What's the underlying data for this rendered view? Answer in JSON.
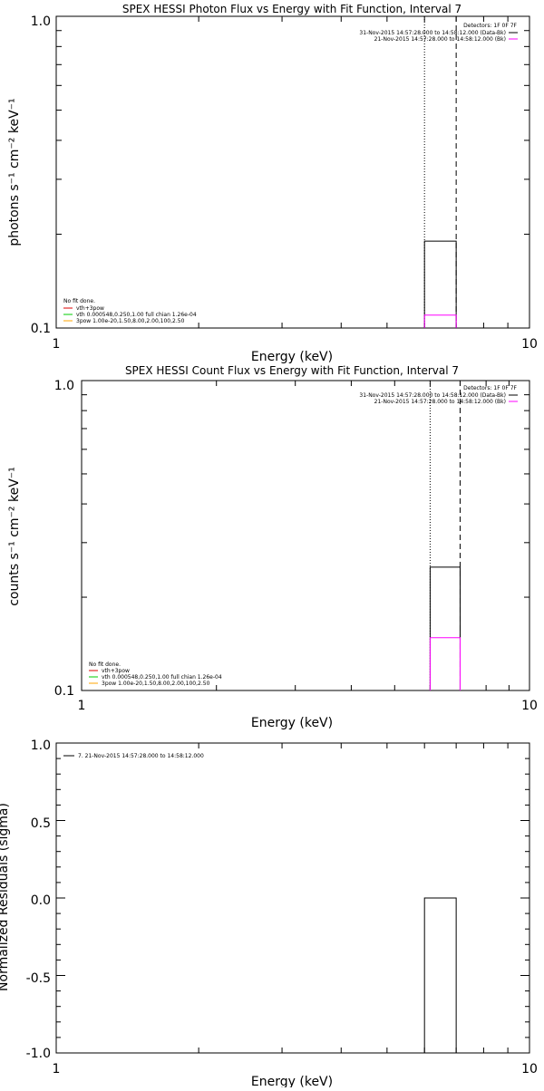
{
  "chart_data": [
    {
      "type": "line",
      "title": "SPEX HESSI Photon Flux vs Energy with Fit Function, Interval 7",
      "xlabel": "Energy (keV)",
      "ylabel": "photons s⁻¹ cm⁻² keV⁻¹",
      "xscale": "log",
      "yscale": "log",
      "xlim": [
        1,
        10
      ],
      "ylim": [
        0.1,
        1.0
      ],
      "x_ticklabels": [
        "1",
        "10"
      ],
      "y_ticklabels": [
        "0.1",
        "1.0"
      ],
      "vlines": [
        {
          "x": 6.0,
          "style": "dotted",
          "color": "#000000"
        },
        {
          "x": 7.0,
          "style": "dashed",
          "color": "#000000"
        }
      ],
      "series": [
        {
          "name": "31-Nov-2015 14:57:28.000 to 14:58:12.000 (Data-Bk)",
          "color": "#000000",
          "step": {
            "x": [
              6.0,
              7.0
            ],
            "y": 0.19
          }
        },
        {
          "name": "21-Nov-2015 14:57:28.000 to 14:58:12.000 (Bk)",
          "color": "#ff00ff",
          "step": {
            "x": [
              6.0,
              7.0
            ],
            "y": 0.11
          }
        }
      ],
      "legend_top_right": {
        "header": "Detectors: 1F 0F 7F",
        "entries": [
          {
            "text": "31-Nov-2015 14:57:28.000 to 14:58:12.000 (Data-Bk)",
            "color": "#000000"
          },
          {
            "text": "21-Nov-2015 14:57:28.000 to 14:58:12.000 (Bk)",
            "color": "#ff00ff"
          }
        ]
      },
      "legend_bottom_left": {
        "header": "No fit done.",
        "entries": [
          {
            "text": "vth+3pow",
            "color": "#dd0000"
          },
          {
            "text": "vth 0.000548,0.250,1.00  full chian 1.26e-04",
            "color": "#00cc00"
          },
          {
            "text": "3pow 1.00e-20,1.50,8.00,2.00,100,2.50",
            "color": "#ffa500"
          }
        ]
      }
    },
    {
      "type": "line",
      "title": "SPEX HESSI Count Flux vs Energy with Fit Function, Interval 7",
      "xlabel": "Energy (keV)",
      "ylabel": "counts s⁻¹ cm⁻² keV⁻¹",
      "xscale": "log",
      "yscale": "log",
      "xlim": [
        1,
        10
      ],
      "ylim": [
        0.1,
        1.0
      ],
      "x_ticklabels": [
        "1",
        "10"
      ],
      "y_ticklabels": [
        "0.1",
        "1.0"
      ],
      "vlines": [
        {
          "x": 6.0,
          "style": "dotted",
          "color": "#000000"
        },
        {
          "x": 7.0,
          "style": "dashed",
          "color": "#000000"
        }
      ],
      "series": [
        {
          "name": "31-Nov-2015 14:57:28.000 to 14:58:12.000 (Data-Bk)",
          "color": "#000000",
          "step": {
            "x": [
              6.0,
              7.0
            ],
            "y": 0.25
          }
        },
        {
          "name": "21-Nov-2015 14:57:28.000 to 14:58:12.000 (Bk)",
          "color": "#ff00ff",
          "step": {
            "x": [
              6.0,
              7.0
            ],
            "y": 0.148
          }
        }
      ],
      "legend_top_right": {
        "header": "Detectors: 1F 0F 7F",
        "entries": [
          {
            "text": "31-Nov-2015 14:57:28.000 to 14:58:12.000 (Data-Bk)",
            "color": "#000000"
          },
          {
            "text": "21-Nov-2015 14:57:28.000 to 14:58:12.000 (Bk)",
            "color": "#ff00ff"
          }
        ]
      },
      "legend_bottom_left": {
        "header": "No fit done.",
        "entries": [
          {
            "text": "vth+3pow",
            "color": "#dd0000"
          },
          {
            "text": "vth 0.000548,0.250,1.00  full chian 1.26e-04",
            "color": "#00cc00"
          },
          {
            "text": "3pow 1.00e-20,1.50,8.00,2.00,100,2.50",
            "color": "#ffa500"
          }
        ]
      }
    },
    {
      "type": "line",
      "title": "",
      "xlabel": "Energy (keV)",
      "ylabel": "Normalized Residuals (sigma)",
      "xscale": "log",
      "yscale": "linear",
      "xlim": [
        1,
        10
      ],
      "ylim": [
        -1.0,
        1.0
      ],
      "x_ticklabels": [
        "1",
        "10"
      ],
      "y_ticklabels": [
        "1.0",
        "0.5",
        "0.0",
        "-0.5",
        "-1.0"
      ],
      "series": [
        {
          "name": "7. 21-Nov-2015 14:57:28.000 to 14:58:12.000",
          "color": "#000000",
          "step": {
            "x": [
              6.0,
              7.0
            ],
            "y": 0.0
          }
        }
      ],
      "legend_top_left": {
        "entries": [
          {
            "text": "7. 21-Nov-2015 14:57:28.000 to 14:58:12.000",
            "color": "#000000"
          }
        ]
      }
    }
  ]
}
